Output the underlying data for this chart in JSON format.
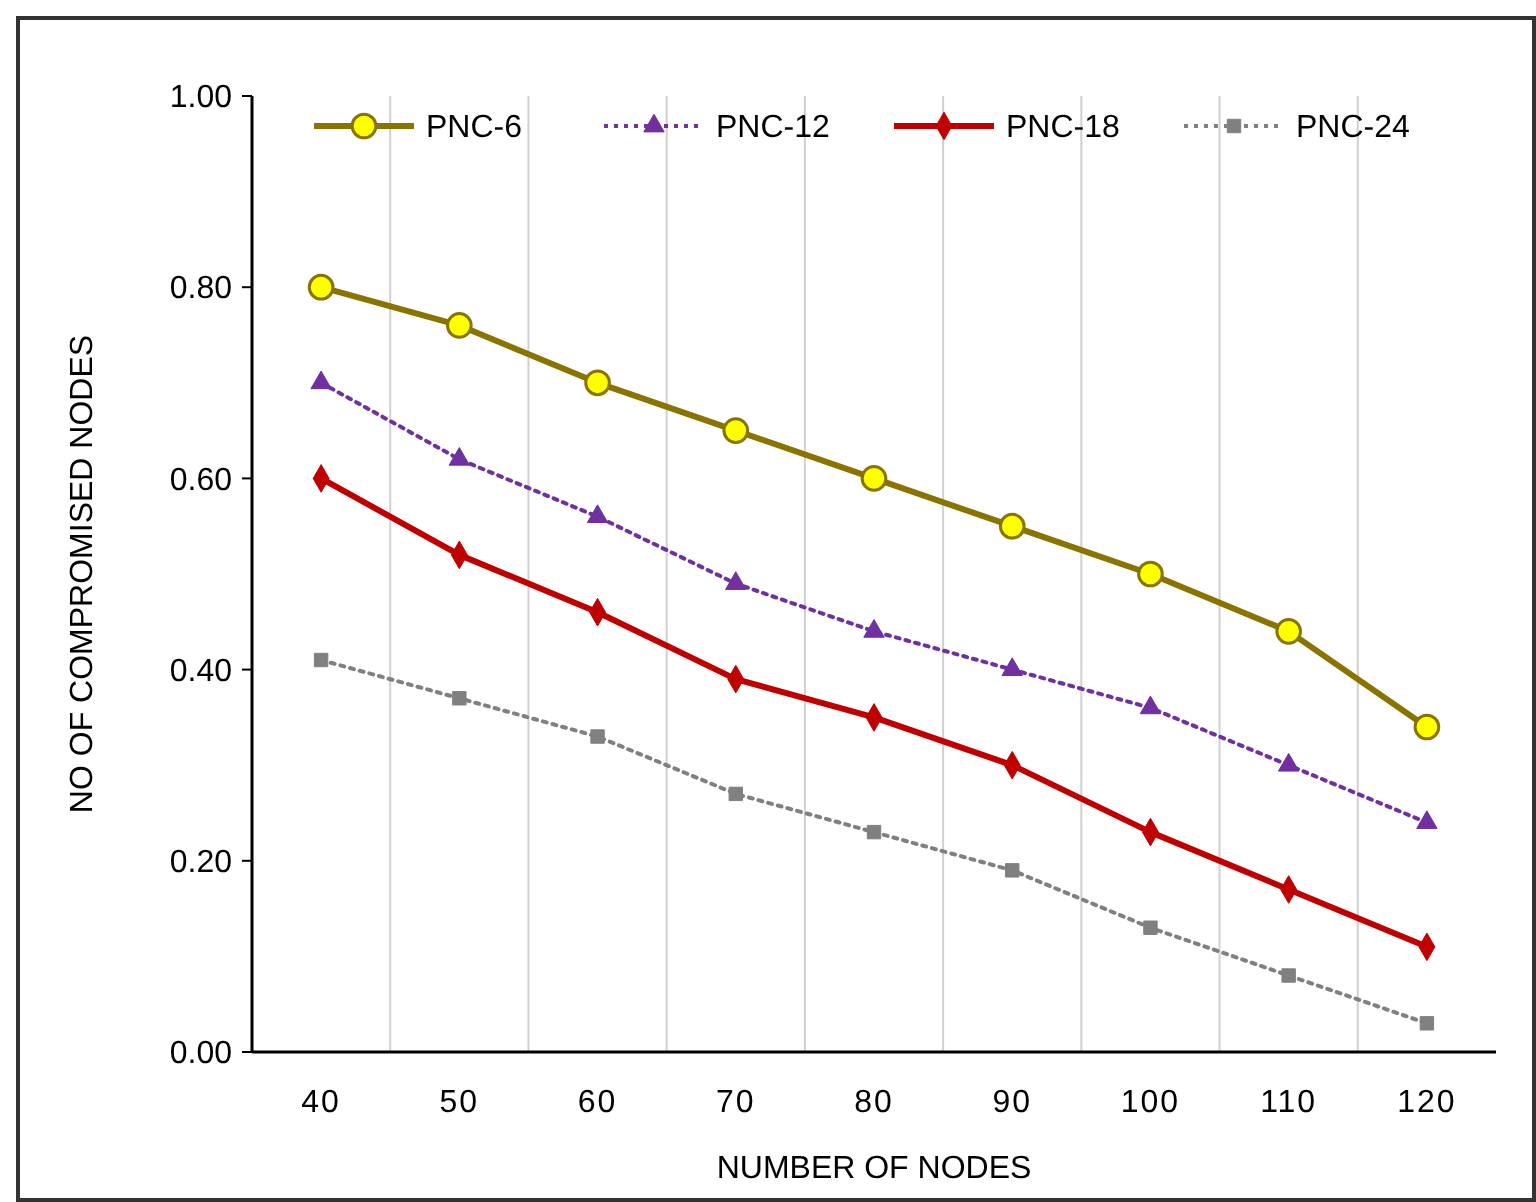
{
  "chart_data": {
    "type": "line",
    "xlabel": "NUMBER OF NODES",
    "ylabel": "NO OF COMPROMISED NODES",
    "categories": [
      "40",
      "50",
      "60",
      "70",
      "80",
      "90",
      "100",
      "110",
      "120"
    ],
    "ylim": [
      0,
      1
    ],
    "yticks": [
      {
        "value": 0,
        "label": "0.00"
      },
      {
        "value": 0.2,
        "label": "0.20"
      },
      {
        "value": 0.4,
        "label": "0.40"
      },
      {
        "value": 0.6,
        "label": "0.60"
      },
      {
        "value": 0.8,
        "label": "0.80"
      },
      {
        "value": 1,
        "label": "1.00"
      }
    ],
    "grid": "x",
    "legend": "top",
    "series": [
      {
        "name": "PNC-6",
        "color": "#8b7300",
        "marker": "circle",
        "line_style": "solid",
        "values": [
          0.8,
          0.76,
          0.7,
          0.65,
          0.6,
          0.55,
          0.5,
          0.44,
          0.34
        ]
      },
      {
        "name": "PNC-12",
        "color": "#7030a0",
        "marker": "triangle",
        "line_style": "dotted",
        "values": [
          0.7,
          0.62,
          0.56,
          0.49,
          0.44,
          0.4,
          0.36,
          0.3,
          0.24
        ]
      },
      {
        "name": "PNC-18",
        "color": "#c00000",
        "marker": "diamond",
        "line_style": "solid",
        "values": [
          0.6,
          0.52,
          0.46,
          0.39,
          0.35,
          0.3,
          0.23,
          0.17,
          0.11
        ]
      },
      {
        "name": "PNC-24",
        "color": "#808080",
        "marker": "square",
        "line_style": "dotted",
        "values": [
          0.41,
          0.37,
          0.33,
          0.27,
          0.23,
          0.19,
          0.13,
          0.08,
          0.03
        ]
      }
    ]
  }
}
